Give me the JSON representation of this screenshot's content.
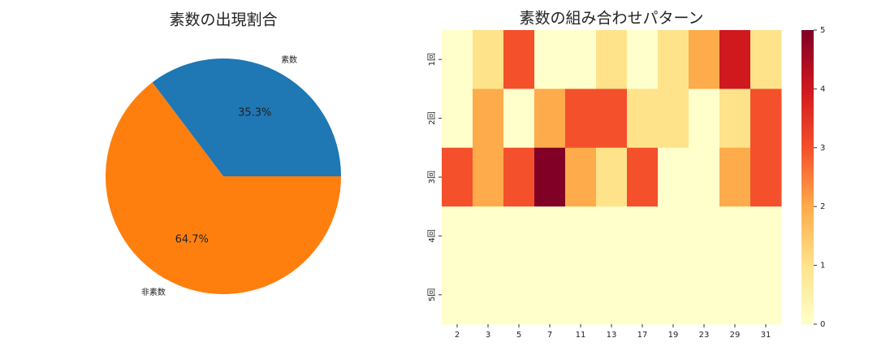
{
  "chart_data": [
    {
      "type": "pie",
      "title": "素数の出現割合",
      "categories": [
        "素数",
        "非素数"
      ],
      "values": [
        35.3,
        64.7
      ],
      "value_labels": [
        "35.3%",
        "64.7%"
      ],
      "colors": [
        "#1f77b4",
        "#ff7f0e"
      ]
    },
    {
      "type": "heatmap",
      "title": "素数の組み合わせパターン",
      "x": [
        "2",
        "3",
        "5",
        "7",
        "11",
        "13",
        "17",
        "19",
        "23",
        "29",
        "31"
      ],
      "y": [
        "1回",
        "2回",
        "3回",
        "4回",
        "5回"
      ],
      "values": [
        [
          0,
          1,
          3,
          0,
          0,
          1,
          0,
          1,
          2,
          4,
          1
        ],
        [
          0,
          2,
          0,
          2,
          3,
          3,
          1,
          1,
          0,
          1,
          3
        ],
        [
          3,
          2,
          3,
          5,
          2,
          1,
          3,
          0,
          0,
          2,
          3
        ],
        [
          0,
          0,
          0,
          0,
          0,
          0,
          0,
          0,
          0,
          0,
          0
        ],
        [
          0,
          0,
          0,
          0,
          0,
          0,
          0,
          0,
          0,
          0,
          0
        ]
      ],
      "zlim": [
        0,
        5
      ],
      "zticks": [
        0,
        1,
        2,
        3,
        4,
        5
      ],
      "colormap": [
        "#ffffcc",
        "#fee38b",
        "#fdab4b",
        "#f4502b",
        "#d0181f",
        "#800026"
      ]
    }
  ]
}
